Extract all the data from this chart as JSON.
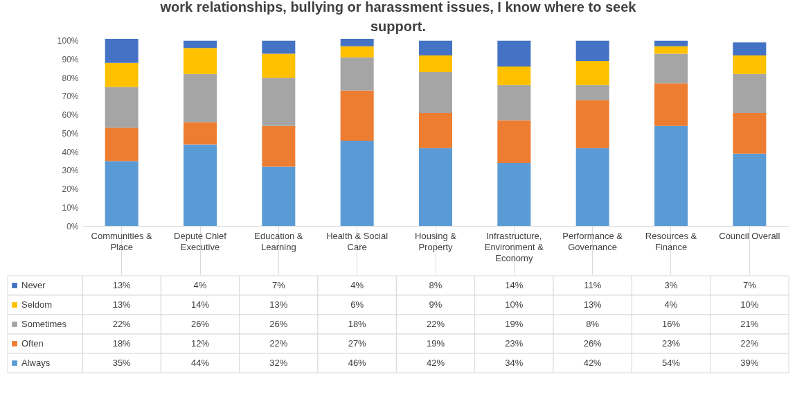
{
  "chart_data": {
    "type": "bar",
    "stacked": true,
    "title": "work relationships, bullying or harassment issues, I know where to seek support.",
    "categories": [
      "Communities & Place",
      "Depute Chief Executive",
      "Education & Learning",
      "Health & Social Care",
      "Housing & Property",
      "Infrastructure, Environment & Economy",
      "Performance & Governance",
      "Resources & Finance",
      "Council Overall"
    ],
    "series": [
      {
        "name": "Always",
        "color": "#5b9bd5",
        "values": [
          35,
          44,
          32,
          46,
          42,
          34,
          42,
          54,
          39
        ],
        "value_labels": [
          "35%",
          "44%",
          "32%",
          "46%",
          "42%",
          "34%",
          "42%",
          "54%",
          "39%"
        ]
      },
      {
        "name": "Often",
        "color": "#ed7d31",
        "values": [
          18,
          12,
          22,
          27,
          19,
          23,
          26,
          23,
          22
        ],
        "value_labels": [
          "18%",
          "12%",
          "22%",
          "27%",
          "19%",
          "23%",
          "26%",
          "23%",
          "22%"
        ]
      },
      {
        "name": "Sometimes",
        "color": "#a5a5a5",
        "values": [
          22,
          26,
          26,
          18,
          22,
          19,
          8,
          16,
          21
        ],
        "value_labels": [
          "22%",
          "26%",
          "26%",
          "18%",
          "22%",
          "19%",
          "8%",
          "16%",
          "21%"
        ]
      },
      {
        "name": "Seldom",
        "color": "#ffc000",
        "values": [
          13,
          14,
          13,
          6,
          9,
          10,
          13,
          4,
          10
        ],
        "value_labels": [
          "13%",
          "14%",
          "13%",
          "6%",
          "9%",
          "10%",
          "13%",
          "4%",
          "10%"
        ]
      },
      {
        "name": "Never",
        "color": "#4472c4",
        "values": [
          13,
          4,
          7,
          4,
          8,
          14,
          11,
          3,
          7
        ],
        "value_labels": [
          "13%",
          "4%",
          "7%",
          "4%",
          "8%",
          "14%",
          "11%",
          "3%",
          "7%"
        ]
      }
    ],
    "ylim": [
      0,
      101
    ],
    "yticks": [
      {
        "value": 0,
        "label": "0%"
      },
      {
        "value": 10,
        "label": "10%"
      },
      {
        "value": 20,
        "label": "20%"
      },
      {
        "value": 30,
        "label": "30%"
      },
      {
        "value": 40,
        "label": "40%"
      },
      {
        "value": 50,
        "label": "50%"
      },
      {
        "value": 60,
        "label": "60%"
      },
      {
        "value": 70,
        "label": "70%"
      },
      {
        "value": 80,
        "label": "80%"
      },
      {
        "value": 90,
        "label": "90%"
      },
      {
        "value": 100,
        "label": "100%"
      }
    ],
    "grid": false,
    "legend": "bottom left"
  }
}
